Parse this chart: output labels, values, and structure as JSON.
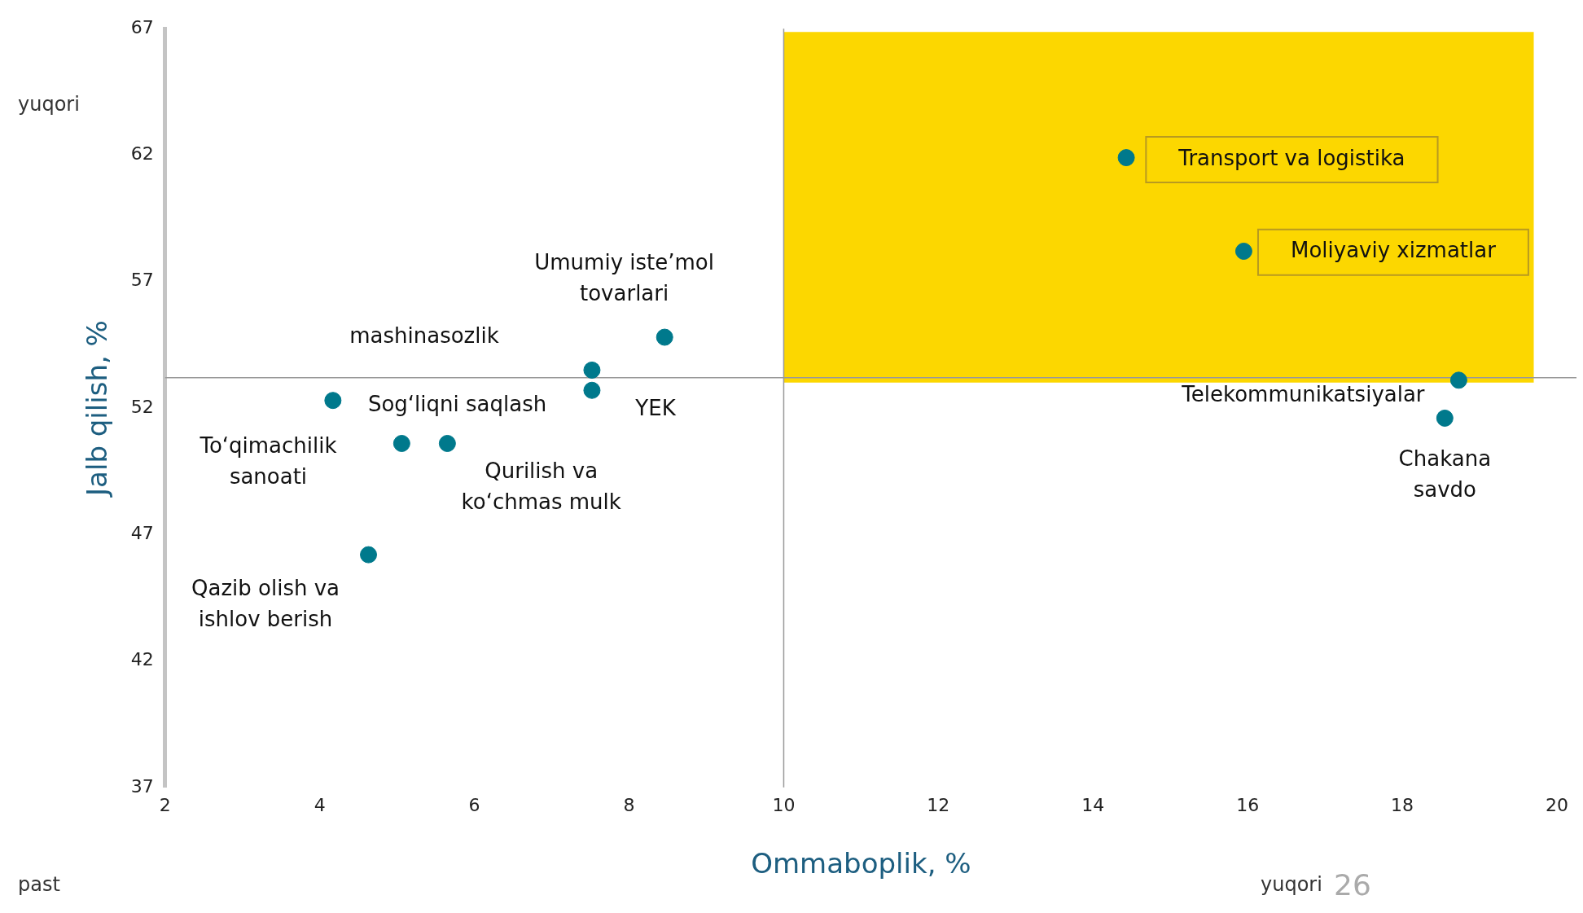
{
  "chart_data": {
    "type": "scatter",
    "xlabel": "Ommaboplik, %",
    "ylabel": "Jalb qilish, %",
    "xlim": [
      2,
      20
    ],
    "xticks": [
      2,
      4,
      6,
      8,
      10,
      12,
      14,
      16,
      18,
      20
    ],
    "ylim": [
      37,
      67
    ],
    "yticks": [
      37,
      42,
      47,
      52,
      57,
      62,
      67
    ],
    "grid": false,
    "legend": false,
    "marker": "circle",
    "series": [
      {
        "color": "#00798c",
        "x": [
          14.43,
          15.95,
          8.46,
          7.52,
          7.52,
          4.17,
          5.06,
          5.65,
          4.63,
          18.73,
          18.55
        ],
        "values": [
          61.9,
          58.2,
          54.8,
          53.5,
          52.7,
          52.3,
          50.6,
          50.6,
          46.2,
          53.1,
          51.6
        ]
      }
    ],
    "ref_lines": [
      {
        "axis": "x",
        "value": 10,
        "color": "#999999"
      },
      {
        "axis": "y",
        "value": 53.2,
        "color": "#999999"
      }
    ],
    "bands": [
      {
        "axis": "x",
        "from": 10,
        "to": 19.7,
        "color": "#fcd700"
      }
    ],
    "annotations": [
      {
        "text": "Transport va logistika",
        "x": 14.43,
        "y": 61.9
      },
      {
        "text": "Moliyaviy xizmatlar",
        "x": 15.95,
        "y": 58.2
      },
      {
        "text": "Umumiy iste’mol\ntovarlari",
        "x": 8.46,
        "y": 54.8
      },
      {
        "text": "To‘qimachilik\nsanoati",
        "x": 4.17,
        "y": 52.3
      },
      {
        "text": "Sog‘liqni saqlash",
        "x": 5.06,
        "y": 50.6
      },
      {
        "text": "Qurilish va\nko‘chmas mulk",
        "x": 5.65,
        "y": 50.6
      },
      {
        "text": "Qazib olish va\nishlov berish",
        "x": 4.63,
        "y": 46.2
      },
      {
        "text": "Telekommunikatsiyalar",
        "x": 18.73,
        "y": 53.1
      },
      {
        "text": "Chakana\nsavdo",
        "x": 18.55,
        "y": 51.6
      },
      "mashinasozlik",
      "YEK",
      "yuqori",
      "past",
      "yuqori",
      "26"
    ]
  }
}
